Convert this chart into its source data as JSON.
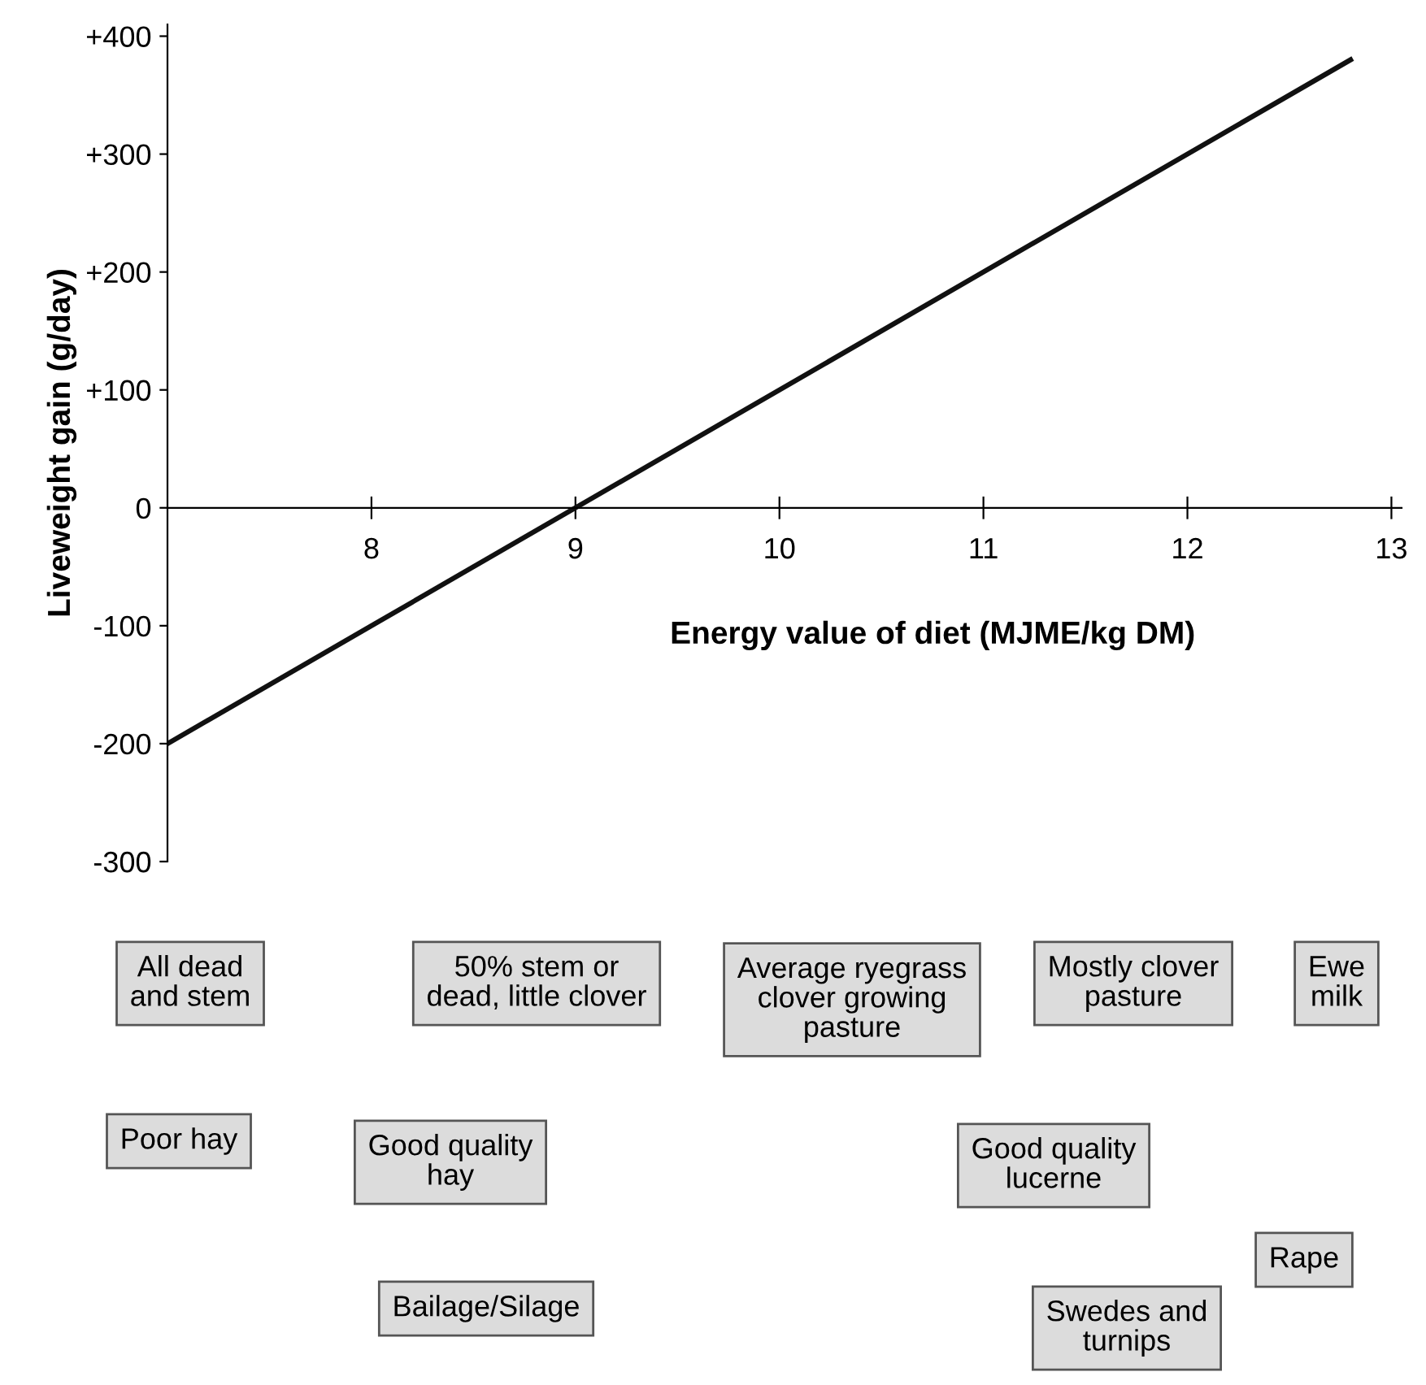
{
  "chart_data": {
    "type": "line",
    "xlabel": "Energy value of diet (MJME/kg DM)",
    "ylabel": "Liveweight gain (g/day)",
    "x": [
      7,
      12.8
    ],
    "series": [
      {
        "color": "#111111",
        "values": [
          -200,
          380
        ]
      }
    ],
    "xlim": [
      7,
      13.05
    ],
    "ylim": [
      -300,
      410
    ],
    "xticks": [
      8,
      9,
      10,
      11,
      12,
      13
    ],
    "yticks": [
      {
        "value": 400,
        "label": "+400"
      },
      {
        "value": 300,
        "label": "+300"
      },
      {
        "value": 200,
        "label": "+200"
      },
      {
        "value": 100,
        "label": "+100"
      },
      0,
      -100,
      -200,
      -300
    ],
    "grid": false,
    "marker": "none",
    "line_style": "solid",
    "annotations": [
      "All dead\nand stem",
      "50% stem or\ndead, little clover",
      "Average ryegrass\nclover growing\npasture",
      "Mostly clover\npasture",
      "Ewe\nmilk",
      "Poor hay",
      "Good quality\nhay",
      "Good quality\nlucerne",
      "Rape",
      "Bailage/Silage",
      "Swedes and\nturnips"
    ]
  }
}
